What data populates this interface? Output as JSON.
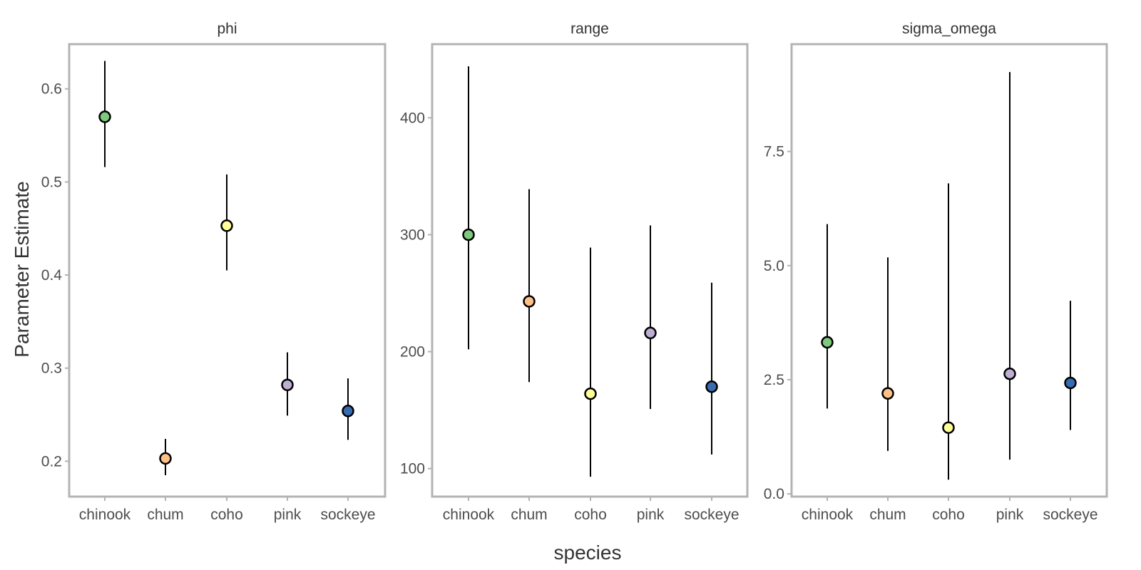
{
  "chart_data": {
    "type": "scatter",
    "subtype": "point-range facets",
    "xlabel": "species",
    "ylabel": "Parameter Estimate",
    "categories": [
      "chinook",
      "chum",
      "coho",
      "pink",
      "sockeye"
    ],
    "colors": {
      "chinook": "#7fc97f",
      "chum": "#fdc086",
      "coho": "#ffff99",
      "pink": "#beaed4",
      "sockeye": "#386cb0"
    },
    "grid": false,
    "legend": "none",
    "panels": [
      {
        "title": "phi",
        "ylim": [
          0.162,
          0.648
        ],
        "yticks": [
          0.2,
          0.3,
          0.4,
          0.5,
          0.6
        ],
        "ytick_labels": [
          "0.2",
          "0.3",
          "0.4",
          "0.5",
          "0.6"
        ],
        "points": [
          {
            "species": "chinook",
            "estimate": 0.57,
            "lower": 0.516,
            "upper": 0.63
          },
          {
            "species": "chum",
            "estimate": 0.203,
            "lower": 0.185,
            "upper": 0.224
          },
          {
            "species": "coho",
            "estimate": 0.453,
            "lower": 0.405,
            "upper": 0.508
          },
          {
            "species": "pink",
            "estimate": 0.282,
            "lower": 0.249,
            "upper": 0.317
          },
          {
            "species": "sockeye",
            "estimate": 0.254,
            "lower": 0.223,
            "upper": 0.289
          }
        ]
      },
      {
        "title": "range",
        "ylim": [
          76,
          463
        ],
        "yticks": [
          100,
          200,
          300,
          400
        ],
        "ytick_labels": [
          "100",
          "200",
          "300",
          "400"
        ],
        "points": [
          {
            "species": "chinook",
            "estimate": 300,
            "lower": 202,
            "upper": 444
          },
          {
            "species": "chum",
            "estimate": 243,
            "lower": 174,
            "upper": 339
          },
          {
            "species": "coho",
            "estimate": 164,
            "lower": 93,
            "upper": 289
          },
          {
            "species": "pink",
            "estimate": 216,
            "lower": 151,
            "upper": 308
          },
          {
            "species": "sockeye",
            "estimate": 170,
            "lower": 112,
            "upper": 259
          }
        ]
      },
      {
        "title": "sigma_omega",
        "ylim": [
          -0.06,
          9.85
        ],
        "yticks": [
          0.0,
          2.5,
          5.0,
          7.5
        ],
        "ytick_labels": [
          "0.0",
          "2.5",
          "5.0",
          "7.5"
        ],
        "points": [
          {
            "species": "chinook",
            "estimate": 3.32,
            "lower": 1.87,
            "upper": 5.91
          },
          {
            "species": "chum",
            "estimate": 2.2,
            "lower": 0.94,
            "upper": 5.18
          },
          {
            "species": "coho",
            "estimate": 1.45,
            "lower": 0.31,
            "upper": 6.8
          },
          {
            "species": "pink",
            "estimate": 2.63,
            "lower": 0.75,
            "upper": 9.24
          },
          {
            "species": "sockeye",
            "estimate": 2.43,
            "lower": 1.4,
            "upper": 4.23
          }
        ]
      }
    ]
  }
}
